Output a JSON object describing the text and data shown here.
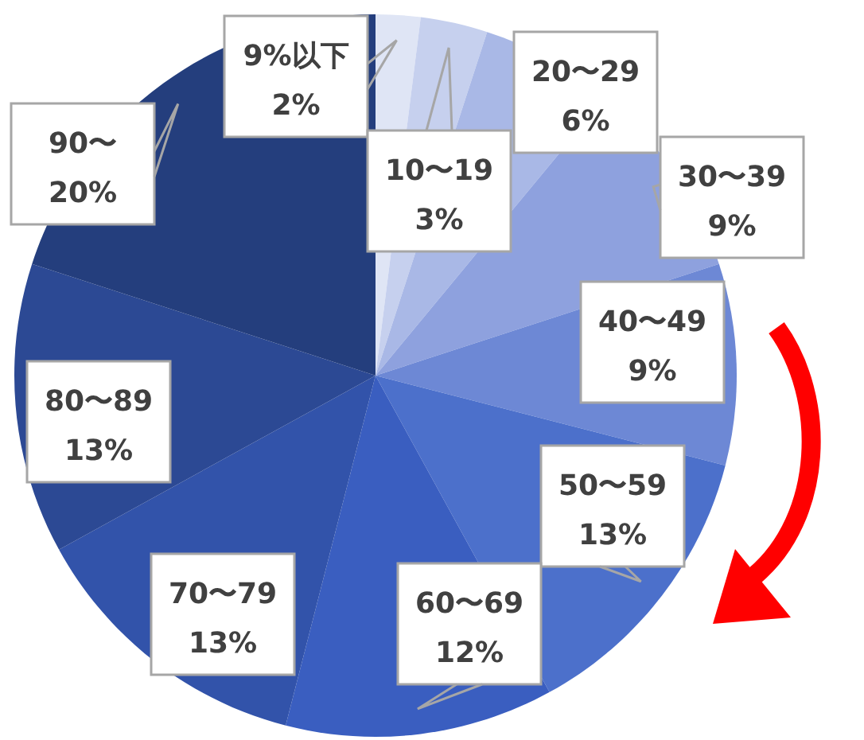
{
  "chart_data": {
    "type": "pie",
    "categories": [
      "9%以下",
      "10〜19",
      "20〜29",
      "30〜39",
      "40〜49",
      "50〜59",
      "60〜69",
      "70〜79",
      "80〜89",
      "90〜"
    ],
    "values": [
      2,
      3,
      6,
      9,
      9,
      13,
      12,
      13,
      13,
      20
    ],
    "value_labels": [
      "2%",
      "3%",
      "6%",
      "9%",
      "9%",
      "13%",
      "12%",
      "13%",
      "13%",
      "20%"
    ],
    "colors": [
      "#dfe5f5",
      "#c6d0ee",
      "#a9b8e6",
      "#8ea1de",
      "#6d88d5",
      "#4c70cb",
      "#3a5ec0",
      "#3253aa",
      "#2c4994",
      "#243e7d"
    ]
  }
}
